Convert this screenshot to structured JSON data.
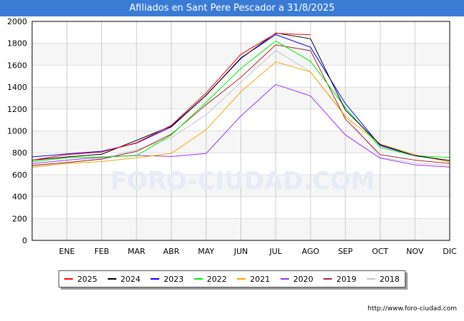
{
  "title": "Afiliados en Sant Pere Pescador a 31/8/2025",
  "url": "http://www.foro-ciudad.com",
  "watermark": "FORO-CIUDAD.COM",
  "chart_data": {
    "type": "line",
    "title": "Afiliados en Sant Pere Pescador a 31/8/2025",
    "categories": [
      "",
      "ENE",
      "FEB",
      "MAR",
      "ABR",
      "MAY",
      "JUN",
      "JUL",
      "AGO",
      "SEP",
      "OCT",
      "NOV",
      "DIC"
    ],
    "ylim": [
      0,
      2000
    ],
    "yticks": [
      0,
      200,
      400,
      600,
      800,
      1000,
      1200,
      1400,
      1600,
      1800,
      2000
    ],
    "grid": true,
    "legend": "bottom",
    "series": [
      {
        "name": "2025",
        "color": "#ff0000",
        "values": [
          733,
          783,
          807,
          892,
          1050,
          1347,
          1699,
          1890,
          1879,
          null,
          null,
          null,
          null
        ]
      },
      {
        "name": "2024",
        "color": "#000000",
        "values": [
          733,
          762,
          787,
          914,
          1043,
          1326,
          1662,
          1894,
          1842,
          1191,
          875,
          773,
          729
        ]
      },
      {
        "name": "2023",
        "color": "#0000ff",
        "values": [
          762,
          790,
          814,
          888,
          1036,
          1326,
          1667,
          1879,
          1764,
          1250,
          866,
          773,
          729
        ]
      },
      {
        "name": "2022",
        "color": "#00ee00",
        "values": [
          718,
          755,
          762,
          773,
          963,
          1261,
          1571,
          1821,
          1636,
          1213,
          848,
          773,
          757
        ]
      },
      {
        "name": "2021",
        "color": "#ffa500",
        "values": [
          675,
          702,
          720,
          755,
          794,
          1011,
          1358,
          1630,
          1538,
          1131,
          881,
          783,
          714
        ]
      },
      {
        "name": "2020",
        "color": "#9b30ff",
        "values": [
          701,
          733,
          758,
          777,
          766,
          794,
          1137,
          1424,
          1319,
          963,
          751,
          690,
          669
        ]
      },
      {
        "name": "2019",
        "color": "#a52a2a",
        "values": [
          686,
          712,
          742,
          814,
          970,
          1239,
          1489,
          1786,
          1732,
          1109,
          783,
          733,
          703
        ]
      },
      {
        "name": "2018",
        "color": "#c8c8c8",
        "values": [
          664,
          705,
          748,
          827,
          937,
          1148,
          1445,
          1734,
          1538,
          1141,
          757,
          708,
          684
        ]
      }
    ]
  }
}
